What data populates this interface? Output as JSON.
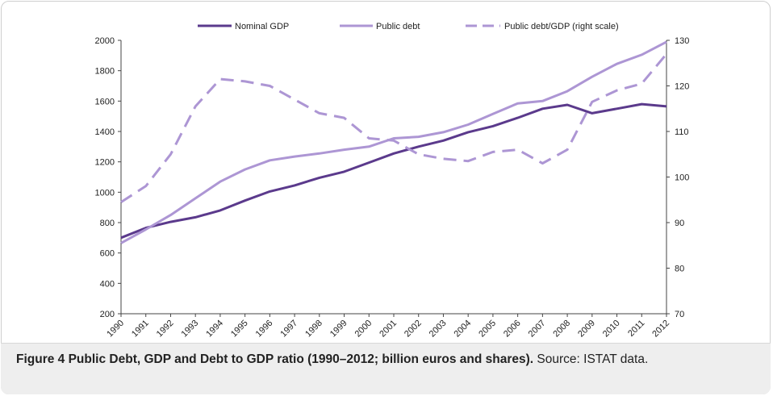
{
  "chart_data": {
    "type": "line",
    "x": [
      "1990",
      "1991",
      "1992",
      "1993",
      "1994",
      "1995",
      "1996",
      "1997",
      "1998",
      "1999",
      "2000",
      "2001",
      "2002",
      "2003",
      "2004",
      "2005",
      "2006",
      "2007",
      "2008",
      "2009",
      "2010",
      "2011",
      "2012"
    ],
    "series": [
      {
        "name": "Nominal GDP",
        "axis": "left",
        "style": "solid",
        "color": "#5b3a8c",
        "values": [
          700,
          765,
          805,
          835,
          880,
          945,
          1005,
          1045,
          1095,
          1135,
          1195,
          1255,
          1300,
          1340,
          1395,
          1435,
          1490,
          1550,
          1575,
          1520,
          1550,
          1580,
          1565
        ]
      },
      {
        "name": "Public debt",
        "axis": "left",
        "style": "solid",
        "color": "#ad96d4",
        "values": [
          665,
          755,
          850,
          960,
          1070,
          1150,
          1210,
          1235,
          1255,
          1280,
          1300,
          1355,
          1365,
          1395,
          1445,
          1515,
          1585,
          1600,
          1665,
          1760,
          1845,
          1905,
          1990
        ]
      },
      {
        "name": "Public debt/GDP (right scale)",
        "axis": "right",
        "style": "dashed",
        "color": "#ad96d4",
        "values": [
          94.5,
          98,
          105,
          115.5,
          121.5,
          121,
          120,
          117,
          114,
          113,
          108.5,
          108,
          105,
          104,
          103.5,
          105.5,
          106,
          103,
          106,
          116.5,
          119,
          120.5,
          127
        ]
      }
    ],
    "y_left": {
      "min": 200,
      "max": 2000,
      "ticks": [
        200,
        400,
        600,
        800,
        1000,
        1200,
        1400,
        1600,
        1800,
        2000
      ]
    },
    "y_right": {
      "min": 70,
      "max": 130,
      "ticks": [
        70,
        80,
        90,
        100,
        110,
        120,
        130
      ]
    },
    "legend_position": "top",
    "grid": false
  },
  "caption": {
    "bold": "Figure 4 Public Debt, GDP and Debt to GDP ratio (1990–2012; billion euros and shares).",
    "rest": " Source: ISTAT data."
  }
}
